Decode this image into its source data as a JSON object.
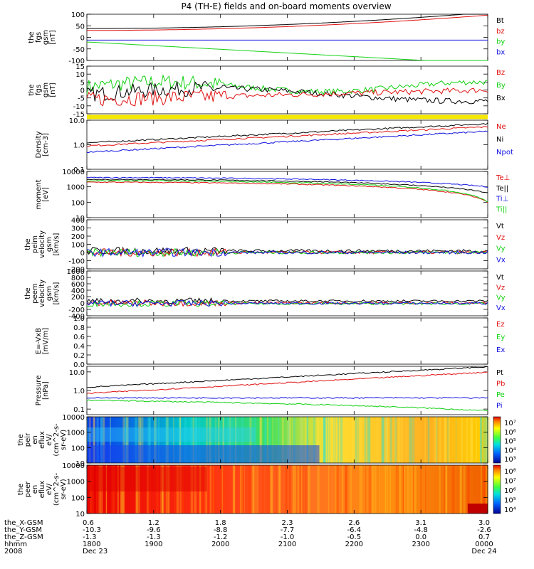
{
  "title": "P4 (TH-E) fields and on-board moments overview",
  "colors": {
    "black": "#000000",
    "red": "#e01010",
    "green": "#10d010",
    "blue": "#1010e0",
    "yellow": "#f5e800"
  },
  "chart_data": [
    {
      "type": "line",
      "name": "fgs-gse",
      "ylabel_lines": [
        "the",
        "fgs",
        "gsm",
        "[nT]"
      ],
      "ylim": [
        -100,
        100
      ],
      "ticks": [
        100,
        50,
        0,
        -50,
        -100
      ],
      "legend": [
        {
          "name": "Bt",
          "color": "black"
        },
        {
          "name": "bz",
          "color": "red"
        },
        {
          "name": "by",
          "color": "green"
        },
        {
          "name": "bx",
          "color": "blue"
        }
      ]
    },
    {
      "type": "line",
      "name": "fgs-gsm",
      "ylabel_lines": [
        "the",
        "fgs",
        "gsm",
        "[nT]"
      ],
      "ylim": [
        -15,
        15
      ],
      "ticks": [
        15,
        10,
        5,
        0,
        -5,
        -10,
        -15
      ],
      "legend": [
        {
          "name": "Bz",
          "color": "red"
        },
        {
          "name": "By",
          "color": "green"
        },
        {
          "name": "Bx",
          "color": "black"
        }
      ]
    },
    {
      "type": "line",
      "name": "density",
      "ylabel_lines": [
        "Density",
        "[cm-3]"
      ],
      "ylim": [
        0.1,
        10
      ],
      "log": true,
      "ticks": [
        "10.0",
        "1.0",
        "0.1"
      ],
      "legend": [
        {
          "name": "Ne",
          "color": "red"
        },
        {
          "name": "Ni",
          "color": "black"
        },
        {
          "name": "Npot",
          "color": "blue"
        }
      ]
    },
    {
      "type": "line",
      "name": "temperature",
      "ylabel_lines": [
        "moment",
        "[eV]"
      ],
      "ylim": [
        10,
        10000
      ],
      "log": true,
      "ticks": [
        "10000",
        "1000",
        "100",
        "10"
      ],
      "legend": [
        {
          "name": "Te⊥",
          "color": "red"
        },
        {
          "name": "Te||",
          "color": "black"
        },
        {
          "name": "Ti⊥",
          "color": "blue"
        },
        {
          "name": "Ti||",
          "color": "green"
        }
      ]
    },
    {
      "type": "line",
      "name": "peim-velocity",
      "ylabel_lines": [
        "the",
        "peim",
        "velocity",
        "gsm",
        "[km/s]"
      ],
      "ylim": [
        -200,
        400
      ],
      "ticks": [
        400,
        300,
        200,
        100,
        0,
        -100,
        -200
      ],
      "legend": [
        {
          "name": "Vt",
          "color": "black"
        },
        {
          "name": "Vz",
          "color": "red"
        },
        {
          "name": "Vy",
          "color": "green"
        },
        {
          "name": "Vx",
          "color": "blue"
        }
      ]
    },
    {
      "type": "line",
      "name": "peem-velocity",
      "ylabel_lines": [
        "the",
        "peem",
        "velocity",
        "gsm",
        "[km/s]"
      ],
      "ylim": [
        -400,
        1000
      ],
      "ticks": [
        1000,
        800,
        600,
        400,
        200,
        0,
        -200,
        -400
      ],
      "legend": [
        {
          "name": "Vt",
          "color": "black"
        },
        {
          "name": "Vz",
          "color": "red"
        },
        {
          "name": "Vy",
          "color": "green"
        },
        {
          "name": "Vx",
          "color": "blue"
        }
      ]
    },
    {
      "type": "line",
      "name": "efield",
      "ylabel_lines": [
        "E=-VxB",
        "[mV/m]"
      ],
      "ylim": [
        0,
        1
      ],
      "ticks": [
        "1.0",
        "0.8",
        "0.6",
        "0.4",
        "0.2",
        "0.0"
      ],
      "legend": [
        {
          "name": "Ez",
          "color": "red"
        },
        {
          "name": "Ey",
          "color": "green"
        },
        {
          "name": "Ex",
          "color": "blue"
        }
      ]
    },
    {
      "type": "line",
      "name": "pressure",
      "ylabel_lines": [
        "Pressure",
        "[nPa]"
      ],
      "ylim": [
        0.05,
        20
      ],
      "log": true,
      "ticks": [
        "10.0",
        "1.0",
        "0.1"
      ],
      "legend": [
        {
          "name": "Pt",
          "color": "black"
        },
        {
          "name": "Pb",
          "color": "red"
        },
        {
          "name": "Pe",
          "color": "green"
        },
        {
          "name": "Pi",
          "color": "blue"
        }
      ]
    },
    {
      "type": "heatmap",
      "name": "peir-eflux",
      "ylabel_lines": [
        "the",
        "peir",
        "en",
        "eflux",
        "eV/",
        "(cm^2-s-",
        "sr-eV)"
      ],
      "ylim": [
        10,
        10000
      ],
      "log": true,
      "ticks": [
        "10000",
        "1000",
        "100",
        "10"
      ],
      "colorbar": {
        "ticks": [
          "10⁷",
          "10⁶",
          "10⁵",
          "10⁴",
          "10³"
        ]
      }
    },
    {
      "type": "heatmap",
      "name": "peer-eflux",
      "ylabel_lines": [
        "the",
        "peer",
        "en",
        "eflux",
        "eV/",
        "(cm^2-s-",
        "sr-eV)"
      ],
      "ylim": [
        10,
        10000
      ],
      "log": true,
      "ticks": [
        "10000",
        "1000",
        "100",
        "10"
      ],
      "colorbar": {
        "ticks": [
          "10⁸",
          "10⁷",
          "10⁶",
          "10⁵",
          "10⁴"
        ]
      }
    }
  ],
  "xaxis": {
    "row_labels": [
      "the_X-GSM",
      "the_Y-GSM",
      "the_Z-GSM",
      "hhmm",
      "2008"
    ],
    "columns": [
      [
        "0.6",
        "-10.3",
        "-1.3",
        "1800",
        "Dec 23"
      ],
      [
        "1.2",
        "-9.6",
        "-1.3",
        "1900",
        ""
      ],
      [
        "1.8",
        "-8.8",
        "-1.2",
        "2000",
        ""
      ],
      [
        "2.3",
        "-7.7",
        "-1.0",
        "2100",
        ""
      ],
      [
        "2.6",
        "-6.4",
        "-0.5",
        "2200",
        ""
      ],
      [
        "3.1",
        "-4.8",
        "0.0",
        "2300",
        ""
      ],
      [
        "3.0",
        "-2.6",
        "0.7",
        "0000",
        "Dec 24"
      ]
    ]
  }
}
